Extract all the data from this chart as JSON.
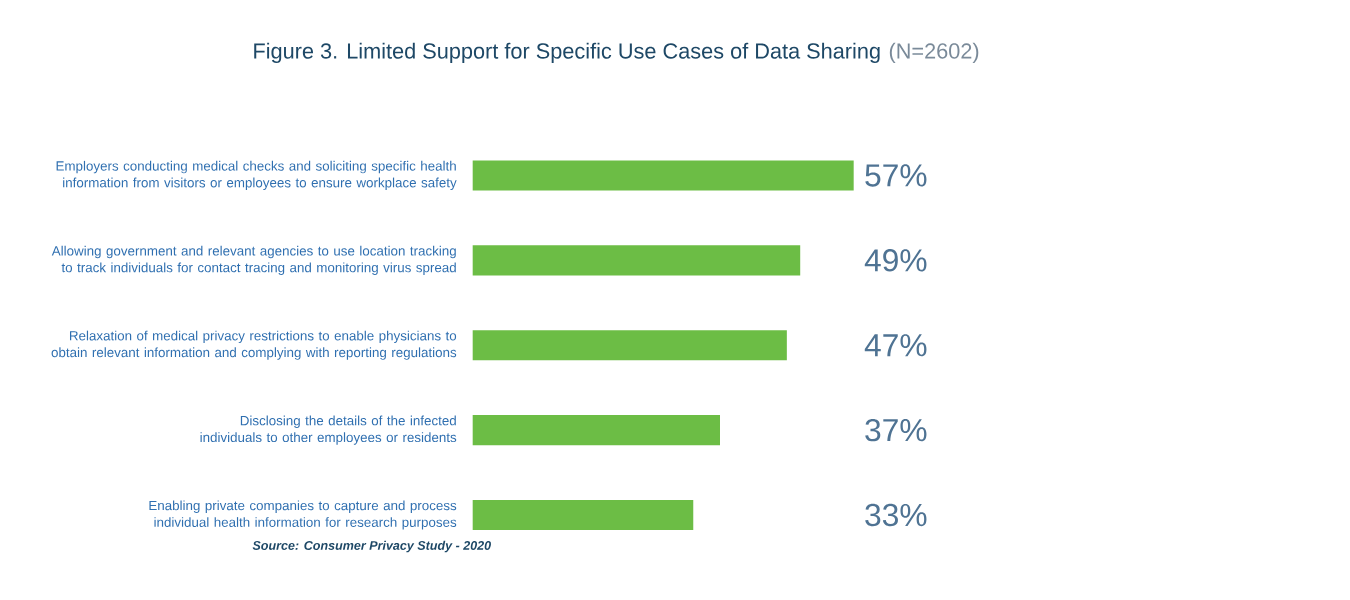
{
  "chart_data": {
    "type": "bar",
    "orientation": "horizontal",
    "title": "Figure 3. Limited Support for Specific Use Cases of Data Sharing",
    "subtitle": "(N=2602)",
    "categories": [
      "Employers conducting medical checks and soliciting specific health information from visitors or employees to ensure workplace safety",
      "Allowing government and relevant agencies to use location tracking to track individuals for contact tracing and monitoring virus spread",
      "Relaxation of medical privacy restrictions to enable physicians to obtain relevant information and complying with reporting regulations",
      "Disclosing the details of the infected individuals to other employees or residents",
      "Enabling private companies to capture and process individual health information for research purposes"
    ],
    "values": [
      57,
      49,
      47,
      37,
      33
    ],
    "value_labels": [
      "57%",
      "49%",
      "47%",
      "37%",
      "33%"
    ],
    "color": "#6cbd45",
    "annotations": [
      "Source: Consumer Privacy Study - 2020"
    ]
  }
}
